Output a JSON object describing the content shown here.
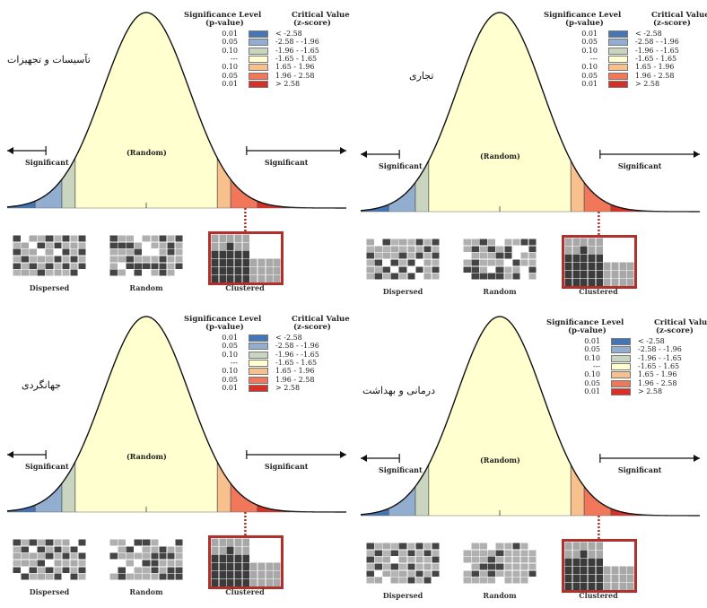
{
  "legend": {
    "header_significance": "Significance Level",
    "header_pvalue": "(p-value)",
    "header_critical": "Critical Value",
    "header_zscore": "(z-score)",
    "rows": [
      {
        "p": "0.01",
        "z": "< -2.58",
        "color": "#4575b4"
      },
      {
        "p": "0.05",
        "z": "-2.58 - -1.96",
        "color": "#91aed0"
      },
      {
        "p": "0.10",
        "z": "-1.96 - -1.65",
        "color": "#c9d5bf"
      },
      {
        "p": "---",
        "z": "-1.65 - 1.65",
        "color": "#ffffcf"
      },
      {
        "p": "0.10",
        "z": "1.65 - 1.96",
        "color": "#f8c08c"
      },
      {
        "p": "0.05",
        "z": "1.96 - 2.58",
        "color": "#f1775a"
      },
      {
        "p": "0.01",
        "z": "> 2.58",
        "color": "#d73027"
      }
    ]
  },
  "labels": {
    "significant": "Significant",
    "random_center": "(Random)",
    "dispersed": "Dispersed",
    "random": "Random",
    "clustered": "Clustered"
  },
  "panels": [
    {
      "title": "تآسیسات و تجهیزات"
    },
    {
      "title": "تجاری"
    },
    {
      "title": "جهانگردی"
    },
    {
      "title": "درمانی و بهداشت"
    }
  ]
}
